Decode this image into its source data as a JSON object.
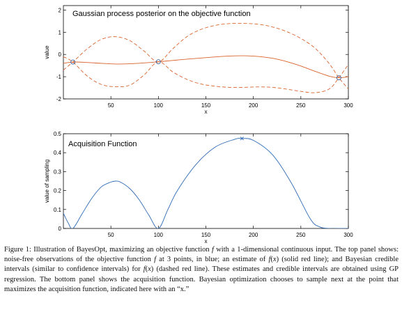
{
  "chart_data": [
    {
      "type": "line",
      "title": "Gaussian process posterior on the objective function",
      "xlabel": "x",
      "ylabel": "value",
      "xlim": [
        0,
        300
      ],
      "ylim": [
        -2,
        2.2
      ],
      "xticks": [
        50,
        100,
        150,
        200,
        250,
        300
      ],
      "yticks": [
        -2,
        -1,
        0,
        1,
        2
      ],
      "grid": false,
      "series": [
        {
          "role": "mean",
          "style": "solid",
          "color": "#d9622b",
          "x": [
            0,
            10,
            25,
            40,
            55,
            70,
            85,
            100,
            115,
            130,
            145,
            160,
            175,
            190,
            205,
            220,
            235,
            250,
            265,
            280,
            290,
            300
          ],
          "y": [
            -0.4,
            -0.34,
            -0.36,
            -0.4,
            -0.43,
            -0.42,
            -0.38,
            -0.33,
            -0.27,
            -0.21,
            -0.16,
            -0.11,
            -0.07,
            -0.06,
            -0.09,
            -0.17,
            -0.32,
            -0.52,
            -0.76,
            -0.98,
            -1.05,
            -1.0
          ]
        },
        {
          "role": "upper-credible",
          "style": "dashed",
          "color": "#d9622b",
          "x": [
            0,
            10,
            25,
            40,
            55,
            70,
            85,
            100,
            115,
            130,
            145,
            160,
            175,
            190,
            205,
            220,
            235,
            250,
            265,
            280,
            290,
            300
          ],
          "y": [
            -0.7,
            -0.34,
            0.25,
            0.68,
            0.8,
            0.62,
            0.15,
            -0.33,
            0.25,
            0.8,
            1.13,
            1.31,
            1.39,
            1.4,
            1.36,
            1.24,
            1.03,
            0.72,
            0.28,
            -0.42,
            -1.05,
            -1.55
          ]
        },
        {
          "role": "lower-credible",
          "style": "dashed",
          "color": "#d9622b",
          "x": [
            0,
            10,
            25,
            40,
            55,
            70,
            85,
            100,
            115,
            130,
            145,
            160,
            175,
            190,
            205,
            220,
            235,
            250,
            265,
            280,
            290,
            300
          ],
          "y": [
            -0.1,
            -0.34,
            -0.97,
            -1.35,
            -1.45,
            -1.38,
            -0.92,
            -0.33,
            -0.78,
            -1.12,
            -1.33,
            -1.43,
            -1.48,
            -1.48,
            -1.46,
            -1.48,
            -1.56,
            -1.66,
            -1.72,
            -1.55,
            -1.05,
            -0.45
          ]
        }
      ],
      "observations": {
        "color": "#3a5fa0",
        "x": [
          10,
          100,
          290
        ],
        "y": [
          -0.34,
          -0.33,
          -1.05
        ]
      }
    },
    {
      "type": "line",
      "title": "Acquisition Function",
      "xlabel": "x",
      "ylabel": "value of sampling",
      "xlim": [
        0,
        300
      ],
      "ylim": [
        0,
        0.5
      ],
      "xticks": [
        50,
        100,
        150,
        200,
        250,
        300
      ],
      "yticks": [
        0,
        0.1,
        0.2,
        0.3,
        0.4,
        0.5
      ],
      "grid": false,
      "series": [
        {
          "role": "acquisition",
          "style": "solid",
          "color": "#2f6bb5",
          "x": [
            0,
            5,
            10,
            20,
            30,
            40,
            50,
            55,
            60,
            70,
            80,
            90,
            100,
            110,
            120,
            140,
            160,
            180,
            188,
            200,
            220,
            240,
            260,
            270,
            280,
            290,
            300
          ],
          "y": [
            0.08,
            0.03,
            0.0,
            0.08,
            0.16,
            0.22,
            0.245,
            0.25,
            0.245,
            0.21,
            0.15,
            0.07,
            0.0,
            0.1,
            0.2,
            0.34,
            0.43,
            0.47,
            0.475,
            0.465,
            0.39,
            0.24,
            0.05,
            0.008,
            0.0,
            0.0,
            0.0
          ]
        }
      ],
      "next_sample": {
        "marker": "x",
        "x": 188,
        "y": 0.475
      }
    }
  ],
  "caption": {
    "lines": [
      [
        {
          "t": "Figure 1: Illustration of BayesOpt, maximizing an objective function "
        },
        {
          "t": "f",
          "i": true
        },
        {
          "t": " with a 1-dimensional continuous"
        }
      ],
      [
        {
          "t": "input.  The top panel shows: noise-free observations of the objective function "
        },
        {
          "t": "f",
          "i": true
        },
        {
          "t": " at 3 points, in blue; an"
        }
      ],
      [
        {
          "t": "estimate of "
        },
        {
          "t": "f",
          "i": true
        },
        {
          "t": "("
        },
        {
          "t": "x",
          "i": true
        },
        {
          "t": ") (solid red line); and Bayesian credible intervals (similar to confidence intervals) for "
        },
        {
          "t": "f",
          "i": true
        },
        {
          "t": "("
        },
        {
          "t": "x",
          "i": true
        },
        {
          "t": ")"
        }
      ],
      [
        {
          "t": "(dashed red line).  These estimates and credible intervals are obtained using GP regression.  The bottom panel"
        }
      ],
      [
        {
          "t": "shows the acquisition function. Bayesian optimization chooses to sample next at the point that maximizes"
        }
      ],
      [
        {
          "t": "the acquisition function, indicated here with an “x.”"
        }
      ]
    ]
  }
}
